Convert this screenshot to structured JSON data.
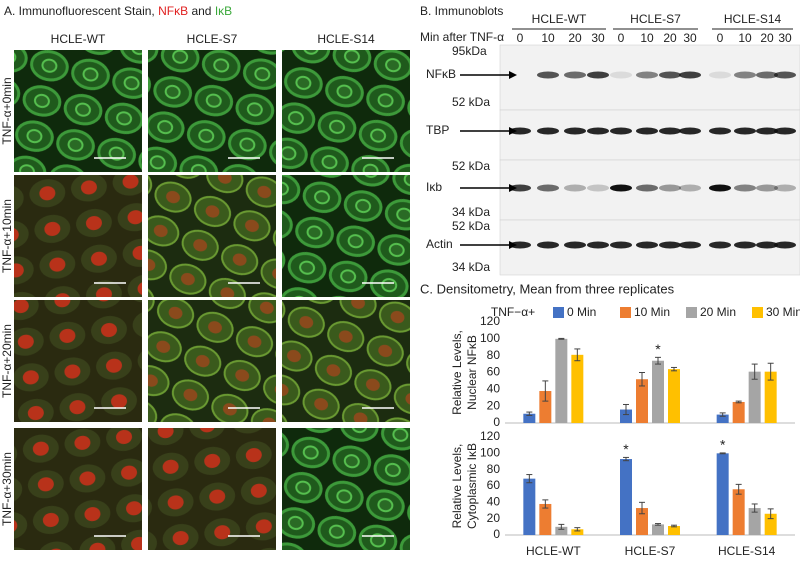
{
  "panel_a": {
    "title": "A. Immunofluorescent Stain,",
    "title_red": "NFκB",
    "title_joiner": "and",
    "title_green": "IκB",
    "columns": [
      "HCLE-WT",
      "HCLE-S7",
      "HCLE-S14"
    ],
    "rows": [
      "TNF-α+0min",
      "TNF-α+10min",
      "TNF-α+20min",
      "TNF-α+30min"
    ]
  },
  "panel_b": {
    "title": "B. Immunoblots",
    "time_label": "Min after TNF-α",
    "groups": [
      {
        "label": "HCLE-WT",
        "times": [
          "0",
          "10",
          "20",
          "30"
        ]
      },
      {
        "label": "HCLE-S7",
        "times": [
          "0",
          "10",
          "20",
          "30"
        ]
      },
      {
        "label": "HCLE-S14",
        "times": [
          "0",
          "10",
          "20",
          "30"
        ]
      }
    ],
    "blots": [
      {
        "name": "NFκB",
        "upper": "95kDa",
        "lower": "52 kDa"
      },
      {
        "name": "TBP"
      },
      {
        "name": "Iκb",
        "upper": "52 kDa",
        "lower": "34 kDa"
      },
      {
        "name": "Actin",
        "upper": "52 kDa",
        "lower": "34 kDa"
      }
    ]
  },
  "chart_data": [
    {
      "type": "bar",
      "title": "C. Densitometry, Mean from three replicates",
      "legend_title": "TNF−α+",
      "ylabel": [
        "Relative Levels,",
        "Nuclear NFκB"
      ],
      "categories": [
        null,
        null,
        null
      ],
      "ylim": [
        0,
        120
      ],
      "yticks": [
        0,
        20,
        40,
        60,
        80,
        100,
        120
      ],
      "series": [
        {
          "name": "0 Min",
          "color": "#4472c4",
          "values": [
            11,
            16,
            10
          ],
          "errors": [
            2,
            6,
            2
          ]
        },
        {
          "name": "10 Min",
          "color": "#ed7d31",
          "values": [
            38,
            52,
            25
          ],
          "errors": [
            12,
            8,
            1
          ]
        },
        {
          "name": "20 Min",
          "color": "#a5a5a5",
          "values": [
            100,
            74,
            61
          ],
          "errors": [
            0.5,
            4,
            9
          ],
          "annotations": [
            null,
            "*",
            null
          ]
        },
        {
          "name": "30 Min",
          "color": "#ffc000",
          "values": [
            81,
            64,
            61
          ],
          "errors": [
            7,
            2,
            10
          ]
        }
      ]
    },
    {
      "type": "bar",
      "ylabel": [
        "Relative Levels,",
        "Cytoplasmic IκB"
      ],
      "categories": [
        "HCLE-WT",
        "HCLE-S7",
        "HCLE-S14"
      ],
      "ylim": [
        0,
        120
      ],
      "yticks": [
        0,
        20,
        40,
        60,
        80,
        100,
        120
      ],
      "series": [
        {
          "color": "#4472c4",
          "values": [
            69,
            93,
            100
          ],
          "errors": [
            5,
            2,
            0.5
          ],
          "annotations": [
            null,
            "*",
            "*"
          ]
        },
        {
          "color": "#ed7d31",
          "values": [
            38,
            33,
            56
          ],
          "errors": [
            5,
            7,
            6
          ]
        },
        {
          "color": "#a5a5a5",
          "values": [
            10,
            13,
            33
          ],
          "errors": [
            3,
            1,
            5
          ]
        },
        {
          "color": "#ffc000",
          "values": [
            7,
            11,
            26
          ],
          "errors": [
            2,
            1,
            6
          ]
        }
      ]
    }
  ]
}
